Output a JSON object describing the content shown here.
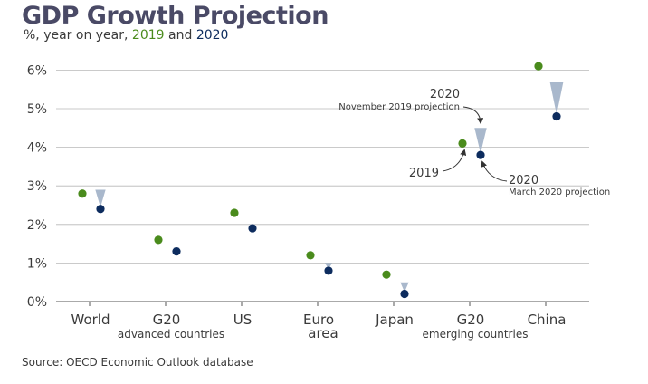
{
  "header": {
    "title": "GDP Growth Projection",
    "subtitle_prefix": "%, year on year, ",
    "subtitle_2019": "2019",
    "subtitle_and": " and ",
    "subtitle_2020": "2020"
  },
  "footer": {
    "source": "Source: OECD Economic Outlook database"
  },
  "colors": {
    "y2019": "#4a8b1c",
    "y2020": "#0d2c5e",
    "arrow": "#a9b8cc",
    "grid": "#b8b8b8",
    "axis": "#555555"
  },
  "chart_data": {
    "type": "scatter",
    "title": "GDP Growth Projection",
    "subtitle": "%, year on year, 2019 and 2020",
    "ylim": [
      0,
      6
    ],
    "yticks": [
      "0%",
      "1%",
      "2%",
      "3%",
      "4%",
      "5%",
      "6%"
    ],
    "grid": true,
    "categories": [
      {
        "label": "World",
        "sublabel": ""
      },
      {
        "label": "G20",
        "sublabel": "advanced countries"
      },
      {
        "label": "US",
        "sublabel": ""
      },
      {
        "label": "Euro",
        "sublabel": "area"
      },
      {
        "label": "Japan",
        "sublabel": ""
      },
      {
        "label": "G20",
        "sublabel": "emerging countries"
      },
      {
        "label": "China",
        "sublabel": ""
      }
    ],
    "series": [
      {
        "name": "2019",
        "values": [
          2.8,
          1.6,
          2.3,
          1.2,
          0.7,
          4.1,
          6.1
        ]
      },
      {
        "name": "2020 November 2019 projection",
        "values": [
          2.9,
          1.4,
          2.0,
          1.0,
          0.5,
          4.5,
          5.7
        ]
      },
      {
        "name": "2020 March 2020 projection",
        "values": [
          2.4,
          1.3,
          1.9,
          0.8,
          0.2,
          3.8,
          4.8
        ]
      }
    ],
    "annotations": {
      "nov_year": "2020",
      "nov_label": "November 2019 projection",
      "y2019_label": "2019",
      "mar_year": "2020",
      "mar_label": "March 2020 projection"
    }
  }
}
